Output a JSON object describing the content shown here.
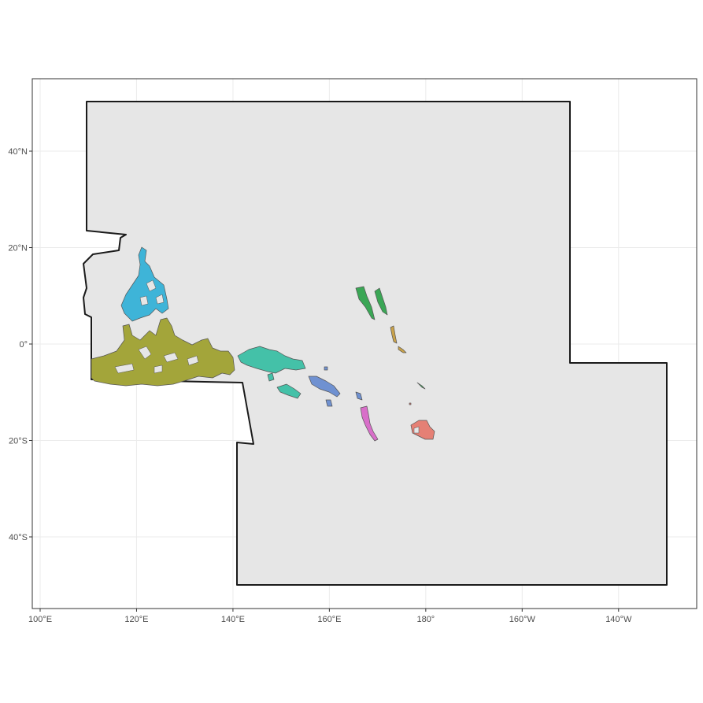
{
  "x_ticks": [
    "100°E",
    "120°E",
    "140°E",
    "160°E",
    "180°",
    "160°W",
    "140°W"
  ],
  "y_ticks": [
    "40°N",
    "20°N",
    "0°",
    "20°S",
    "40°S"
  ],
  "x_tick_values": [
    100,
    120,
    140,
    160,
    180,
    200,
    220
  ],
  "y_tick_values": [
    40,
    20,
    0,
    -20,
    -40
  ],
  "colors": {
    "domain_fill": "#e6e6e6",
    "domain_border": "#1a1a1a",
    "region_philippines": "#3eb4d8",
    "region_indonesia": "#a3a53a",
    "region_png": "#44c1a8",
    "region_solomon": "#6f91d1",
    "region_vanuatu": "#d86fc9",
    "region_fiji": "#e58075",
    "region_marshall": "#3aa655",
    "region_kiribati": "#c9a24a"
  }
}
